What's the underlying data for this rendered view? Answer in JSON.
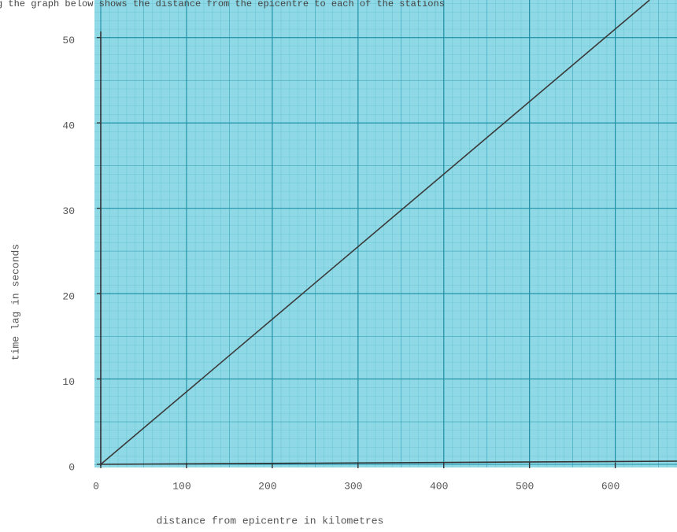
{
  "chart_data": {
    "type": "line",
    "title": "g the graph below shows the distance from the epicentre to each of the stations",
    "x_label": "distance from epicentre in kilometres",
    "y_label": "time lag in seconds",
    "x": [
      0,
      640
    ],
    "values": [
      0,
      54.4
    ],
    "color": "#3a3a3a",
    "xlim": [
      0,
      672
    ],
    "xticks": [
      0,
      100,
      200,
      300,
      400,
      500,
      600
    ],
    "ylim": [
      0,
      54.4
    ],
    "yticks": [
      0,
      10,
      20,
      30,
      40,
      50
    ],
    "grid": true
  }
}
